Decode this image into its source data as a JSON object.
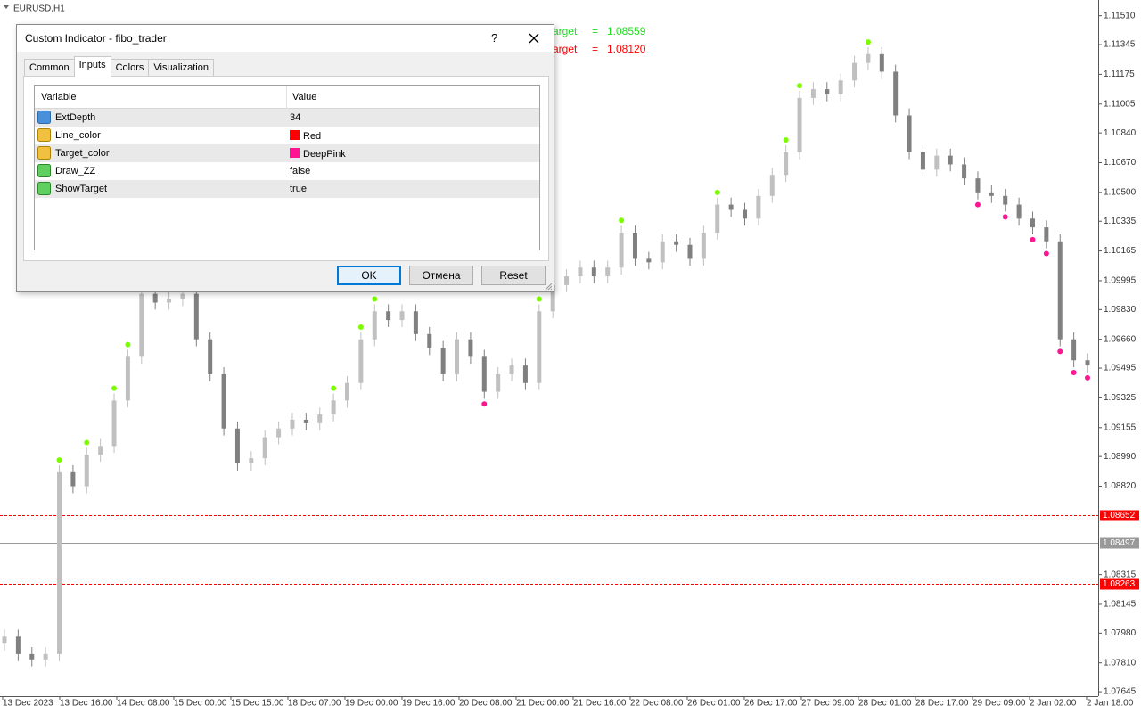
{
  "chart_data": {
    "type": "candlestick",
    "title": "EURUSD,H1",
    "up_color": "#c0c0c0",
    "down_color": "#808080",
    "open": [
      1.0792,
      1.0796,
      1.0786,
      1.0783,
      1.0786,
      1.089,
      1.0882,
      1.09,
      1.0905,
      1.0931,
      1.0956,
      1.0992,
      1.0987,
      1.0989,
      1.0992,
      1.0966,
      1.0946,
      1.0915,
      1.0895,
      1.0898,
      1.091,
      1.0915,
      1.092,
      1.0918,
      1.0923,
      1.0931,
      1.0941,
      1.0966,
      1.0982,
      1.0977,
      1.0982,
      1.0969,
      1.0961,
      1.0946,
      1.0966,
      1.0956,
      1.0936,
      1.0946,
      1.0951,
      1.0941,
      1.0982,
      1.0997,
      1.1002,
      1.1007,
      1.1002,
      1.1007,
      1.1027,
      1.1012,
      1.101,
      1.1022,
      1.102,
      1.1012,
      1.1027,
      1.1043,
      1.104,
      1.1035,
      1.1048,
      1.106,
      1.1073,
      1.1104,
      1.1109,
      1.1106,
      1.1114,
      1.1124,
      1.1129,
      1.1119,
      1.1094,
      1.1073,
      1.1063,
      1.1071,
      1.1066,
      1.1058,
      1.105,
      1.1048,
      1.1043,
      1.1035,
      1.103,
      1.1022,
      1.0966,
      1.0954
    ],
    "high": [
      1.08,
      1.08,
      1.079,
      1.079,
      1.0894,
      1.0894,
      1.0904,
      1.0909,
      1.0935,
      1.096,
      1.0996,
      1.0996,
      1.0993,
      1.0996,
      1.0996,
      1.097,
      1.095,
      1.0919,
      1.0902,
      1.0914,
      1.0919,
      1.0924,
      1.0924,
      1.0927,
      1.0935,
      1.0945,
      1.097,
      1.0986,
      1.0986,
      1.0986,
      1.0986,
      1.0973,
      1.0965,
      1.097,
      1.097,
      1.096,
      1.095,
      1.0955,
      1.0955,
      1.0986,
      1.1001,
      1.1006,
      1.1011,
      1.1011,
      1.1011,
      1.1031,
      1.1031,
      1.1016,
      1.1026,
      1.1026,
      1.1024,
      1.1031,
      1.1047,
      1.1047,
      1.1044,
      1.1052,
      1.1064,
      1.1077,
      1.1108,
      1.1113,
      1.1113,
      1.1118,
      1.1128,
      1.1133,
      1.1133,
      1.1123,
      1.1098,
      1.1077,
      1.1075,
      1.1075,
      1.107,
      1.1062,
      1.1054,
      1.1052,
      1.1047,
      1.1039,
      1.1034,
      1.1026,
      1.097,
      1.0958
    ],
    "low": [
      1.0788,
      1.0782,
      1.0779,
      1.0779,
      1.0782,
      1.0878,
      1.0878,
      1.0896,
      1.0901,
      1.0927,
      1.0952,
      1.0983,
      1.0983,
      1.0985,
      1.0962,
      1.0942,
      1.0911,
      1.0891,
      1.0891,
      1.0894,
      1.0906,
      1.0911,
      1.0914,
      1.0914,
      1.0919,
      1.0927,
      1.0937,
      1.0962,
      1.0973,
      1.0973,
      1.0965,
      1.0957,
      1.0942,
      1.0942,
      1.0952,
      1.0932,
      1.0932,
      1.0942,
      1.0937,
      1.0937,
      1.0978,
      1.0993,
      1.0998,
      1.0998,
      1.0998,
      1.1003,
      1.1008,
      1.1006,
      1.1006,
      1.1016,
      1.1008,
      1.1008,
      1.1023,
      1.1036,
      1.1031,
      1.1031,
      1.1044,
      1.1056,
      1.1069,
      1.11,
      1.1102,
      1.1102,
      1.111,
      1.112,
      1.1115,
      1.109,
      1.1069,
      1.1059,
      1.1059,
      1.1062,
      1.1054,
      1.1046,
      1.1044,
      1.1039,
      1.1031,
      1.1026,
      1.1018,
      1.0962,
      1.095,
      1.0947
    ],
    "close": [
      1.0796,
      1.0786,
      1.0783,
      1.0786,
      1.089,
      1.0882,
      1.09,
      1.0905,
      1.0931,
      1.0956,
      1.0992,
      1.0987,
      1.0989,
      1.0992,
      1.0966,
      1.0946,
      1.0915,
      1.0895,
      1.0898,
      1.091,
      1.0915,
      1.092,
      1.0918,
      1.0923,
      1.0931,
      1.0941,
      1.0966,
      1.0982,
      1.0977,
      1.0982,
      1.0969,
      1.0961,
      1.0946,
      1.0966,
      1.0956,
      1.0936,
      1.0946,
      1.0951,
      1.0941,
      1.0982,
      1.0997,
      1.1002,
      1.1007,
      1.1002,
      1.1007,
      1.1027,
      1.1012,
      1.101,
      1.1022,
      1.102,
      1.1012,
      1.1027,
      1.1043,
      1.104,
      1.1035,
      1.1048,
      1.106,
      1.1073,
      1.1104,
      1.1109,
      1.1106,
      1.1114,
      1.1124,
      1.1129,
      1.1119,
      1.1094,
      1.1073,
      1.1063,
      1.1071,
      1.1066,
      1.1058,
      1.105,
      1.1048,
      1.1043,
      1.1035,
      1.103,
      1.1022,
      1.0966,
      1.0954,
      1.0951
    ],
    "up_signals": {
      "color": "#7cfc00",
      "index": [
        4,
        6,
        8,
        9,
        24,
        26,
        27,
        39,
        45,
        52,
        57,
        58,
        63
      ],
      "values": [
        1.0897,
        1.0907,
        1.0938,
        1.0963,
        1.0938,
        1.0973,
        1.0989,
        1.0989,
        1.1034,
        1.105,
        1.108,
        1.1111,
        1.1136
      ]
    },
    "down_signals": {
      "color": "#ff1493",
      "index": [
        35,
        71,
        73,
        75,
        76,
        77,
        78,
        79
      ],
      "values": [
        1.0929,
        1.1043,
        1.1036,
        1.1023,
        1.1015,
        1.0959,
        1.0947,
        1.0944
      ]
    },
    "time_labels": [
      "13 Dec 2023",
      "13 Dec 16:00",
      "14 Dec 08:00",
      "15 Dec 00:00",
      "15 Dec 15:00",
      "18 Dec 07:00",
      "19 Dec 00:00",
      "19 Dec 16:00",
      "20 Dec 08:00",
      "21 Dec 00:00",
      "21 Dec 16:00",
      "22 Dec 08:00",
      "26 Dec 01:00",
      "26 Dec 17:00",
      "27 Dec 09:00",
      "28 Dec 01:00",
      "28 Dec 17:00",
      "29 Dec 09:00",
      "2 Jan 02:00",
      "2 Jan 18:00"
    ],
    "ylim": [
      1.0762,
      1.116
    ],
    "yticks": [
      {
        "value": 1.1151,
        "label": "1.11510"
      },
      1.11345,
      1.11175,
      1.11005,
      {
        "value": 1.1084,
        "label": "1.10840"
      },
      {
        "value": 1.1067,
        "label": "1.10670"
      },
      {
        "value": 1.105,
        "label": "1.10500"
      },
      1.10335,
      1.10165,
      1.09995,
      {
        "value": 1.0983,
        "label": "1.09830"
      },
      {
        "value": 1.0966,
        "label": "1.09660"
      },
      1.09495,
      1.09325,
      1.09155,
      {
        "value": 1.0899,
        "label": "1.08990"
      },
      {
        "value": 1.0882,
        "label": "1.08820"
      },
      1.08315,
      1.08145,
      {
        "value": 1.0798,
        "label": "1.07980"
      },
      {
        "value": 1.0781,
        "label": "1.07810"
      },
      1.07645
    ],
    "levels": [
      {
        "value": 1.08652,
        "color": "#ff0000",
        "dashed": true
      },
      {
        "value": 1.08497,
        "color": "#999999",
        "dashed": false
      },
      {
        "value": 1.08263,
        "color": "#ff0000",
        "dashed": true
      }
    ],
    "targets": [
      {
        "label": "arget",
        "equals": "=",
        "value": 1.08559,
        "color": "#22dd22"
      },
      {
        "label": "arget",
        "equals": "=",
        "value": 1.0812,
        "value_label": "1.08120",
        "color": "#ff0000"
      }
    ]
  },
  "dialog": {
    "title": "Custom Indicator - fibo_trader",
    "help": "?",
    "tabs": [
      "Common",
      "Inputs",
      "Colors",
      "Visualization"
    ],
    "active_tab": 1,
    "columns": [
      "Variable",
      "Value"
    ],
    "rows": [
      {
        "variable": "ExtDepth",
        "value": 34
      },
      {
        "variable": "Line_color",
        "value": "Red",
        "swatch": "#ff0000"
      },
      {
        "variable": "Target_color",
        "value": "DeepPink",
        "swatch": "#ff1493"
      },
      {
        "variable": "Draw_ZZ",
        "value": "false"
      },
      {
        "variable": "ShowTarget",
        "value": "true"
      }
    ],
    "buttons": [
      "OK",
      "Отмена",
      "Reset"
    ]
  }
}
